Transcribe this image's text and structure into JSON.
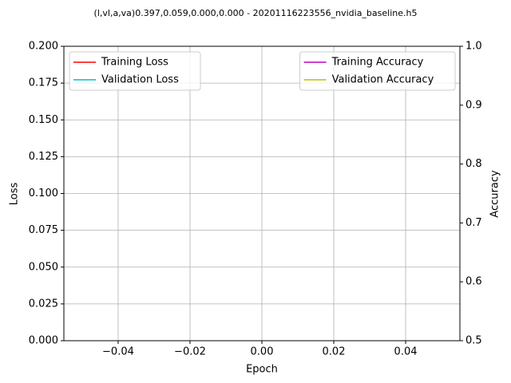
{
  "chart_data": {
    "type": "line",
    "title": "(l,vl,a,va)0.397,0.059,0.000,0.000 - 20201116223556_nvidia_baseline.h5",
    "x_label": "Epoch",
    "y_label": "Loss",
    "y2_label": "Accuracy",
    "x": [],
    "series": [
      {
        "name": "Training Loss",
        "color": "#ff0000",
        "values": []
      },
      {
        "name": "Validation Loss",
        "color": "#00bfbf",
        "values": []
      },
      {
        "name": "Training Accuracy",
        "color": "#bf00bf",
        "values": [],
        "axis": "y2"
      },
      {
        "name": "Validation Accuracy",
        "color": "#bfbf00",
        "values": [],
        "axis": "y2"
      }
    ],
    "xlim": [
      -0.0551,
      0.0551
    ],
    "xticks": [
      {
        "value": -0.04,
        "label": "−0.04"
      },
      {
        "value": -0.02,
        "label": "−0.02"
      },
      {
        "value": 0,
        "label": "0.00"
      },
      0.02,
      0.04
    ],
    "ylim": [
      0,
      0.2
    ],
    "yticks": [
      {
        "value": 0,
        "label": "0.000"
      },
      0.025,
      {
        "value": 0.05,
        "label": "0.050"
      },
      0.075,
      {
        "value": 0.1,
        "label": "0.100"
      },
      0.125,
      {
        "value": 0.15,
        "label": "0.150"
      },
      0.175,
      {
        "value": 0.2,
        "label": "0.200"
      }
    ],
    "y2lim": [
      0.5,
      1
    ],
    "y2ticks": [
      0.5,
      0.6,
      0.7,
      0.8,
      0.9,
      {
        "value": 1,
        "label": "1.0"
      }
    ],
    "grid": true,
    "legend": "upper left",
    "legend2": "upper right"
  }
}
